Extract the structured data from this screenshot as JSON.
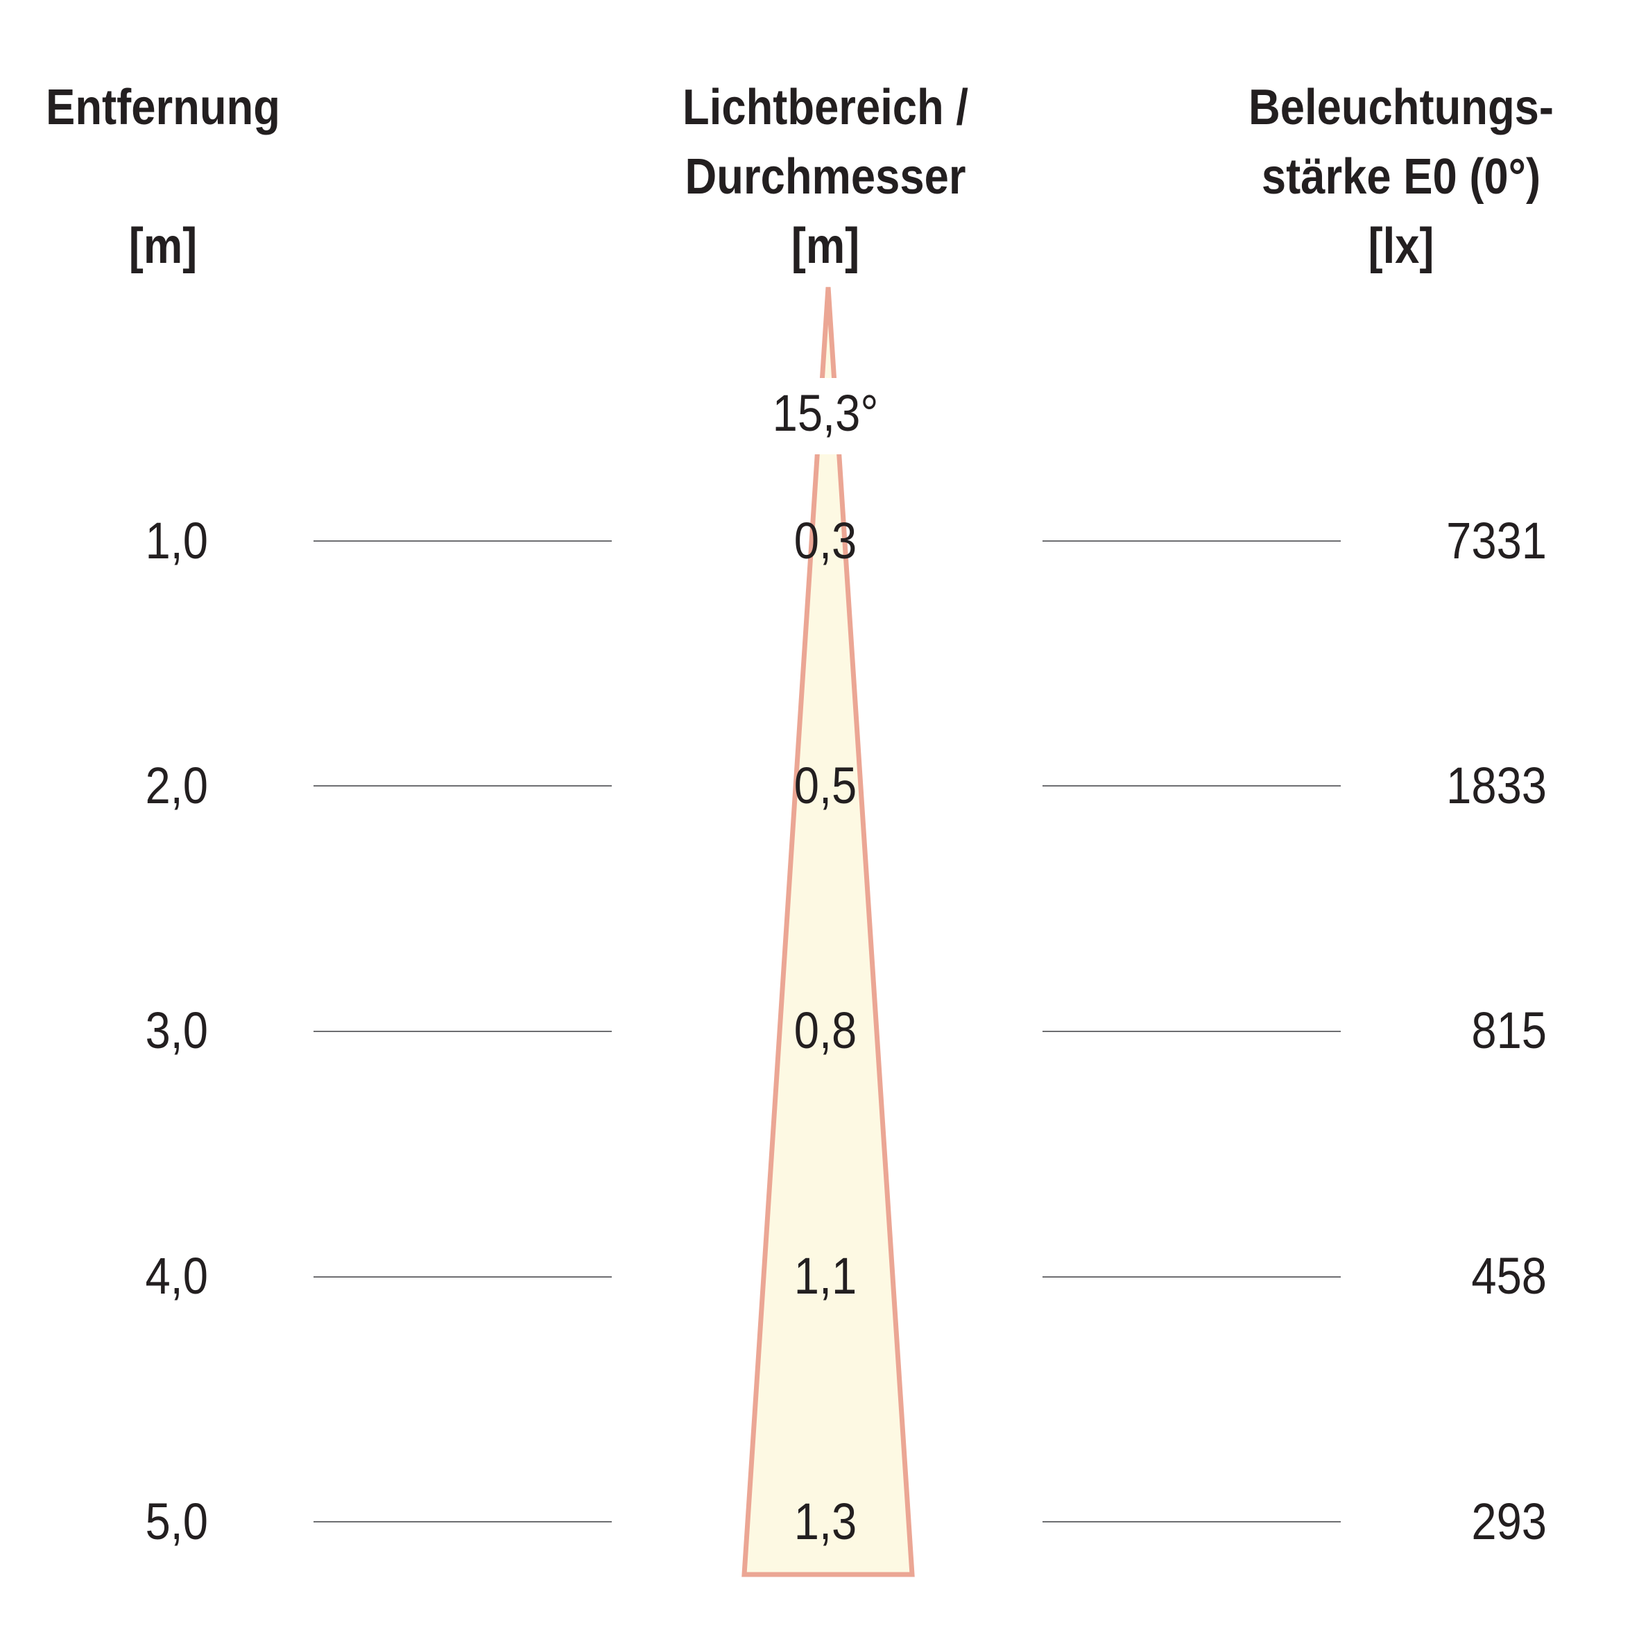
{
  "headers": {
    "distance": {
      "line1": "Entfernung",
      "unit": "[m]"
    },
    "beam": {
      "line1": "Lichtbereich /",
      "line2": "Durchmesser",
      "unit": "[m]"
    },
    "illuminance": {
      "line1": "Beleuchtungs-",
      "line2": "stärke E0 (0°)",
      "unit": "[lx]"
    }
  },
  "beam_angle": "15,3°",
  "rows": [
    {
      "distance": "1,0",
      "diameter": "0,3",
      "lux": "7331"
    },
    {
      "distance": "2,0",
      "diameter": "0,5",
      "lux": "1833"
    },
    {
      "distance": "3,0",
      "diameter": "0,8",
      "lux": "815"
    },
    {
      "distance": "4,0",
      "diameter": "1,1",
      "lux": "458"
    },
    {
      "distance": "5,0",
      "diameter": "1,3",
      "lux": "293"
    }
  ],
  "colors": {
    "beam_fill": "#fdf9e3",
    "beam_edge": "#eba694",
    "rule": "#6d6e71",
    "text": "#231f20"
  }
}
